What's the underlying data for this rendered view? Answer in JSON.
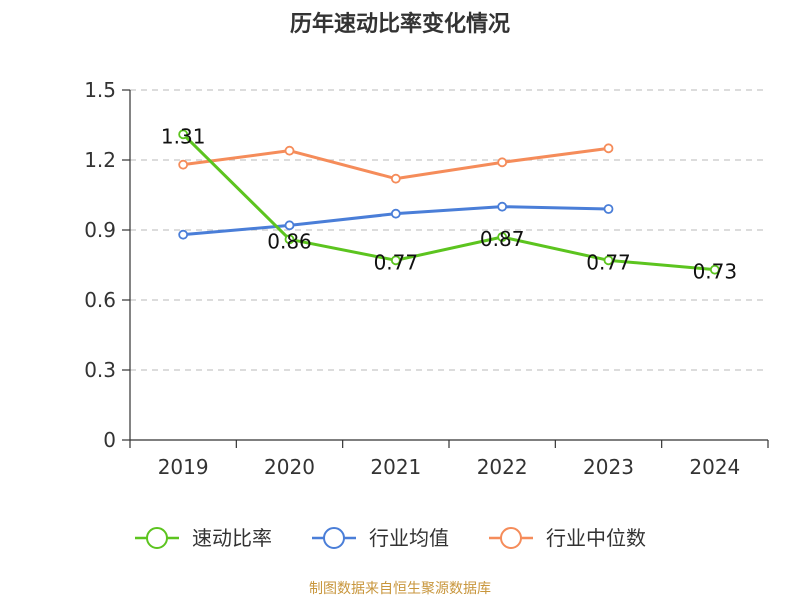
{
  "chart_data": {
    "type": "line",
    "title": "历年速动比率变化情况",
    "categories": [
      "2019",
      "2020",
      "2021",
      "2022",
      "2023",
      "2024"
    ],
    "ylim": [
      0,
      1.5
    ],
    "yticks": [
      "0",
      "0.3",
      "0.6",
      "0.9",
      "1.2",
      "1.5"
    ],
    "grid": true,
    "legend_position": "bottom",
    "series": [
      {
        "name": "速动比率",
        "color": "#5cc41f",
        "values": [
          1.31,
          0.86,
          0.77,
          0.87,
          0.77,
          0.73
        ],
        "labels": [
          "1.31",
          "0.86",
          "0.77",
          "0.87",
          "0.77",
          "0.73"
        ]
      },
      {
        "name": "行业均值",
        "color": "#4a7ed8",
        "values": [
          0.88,
          0.92,
          0.97,
          1.0,
          0.99,
          null
        ]
      },
      {
        "name": "行业中位数",
        "color": "#f58c5a",
        "values": [
          1.18,
          1.24,
          1.12,
          1.19,
          1.25,
          null
        ]
      }
    ]
  },
  "source": "制图数据来自恒生聚源数据库"
}
